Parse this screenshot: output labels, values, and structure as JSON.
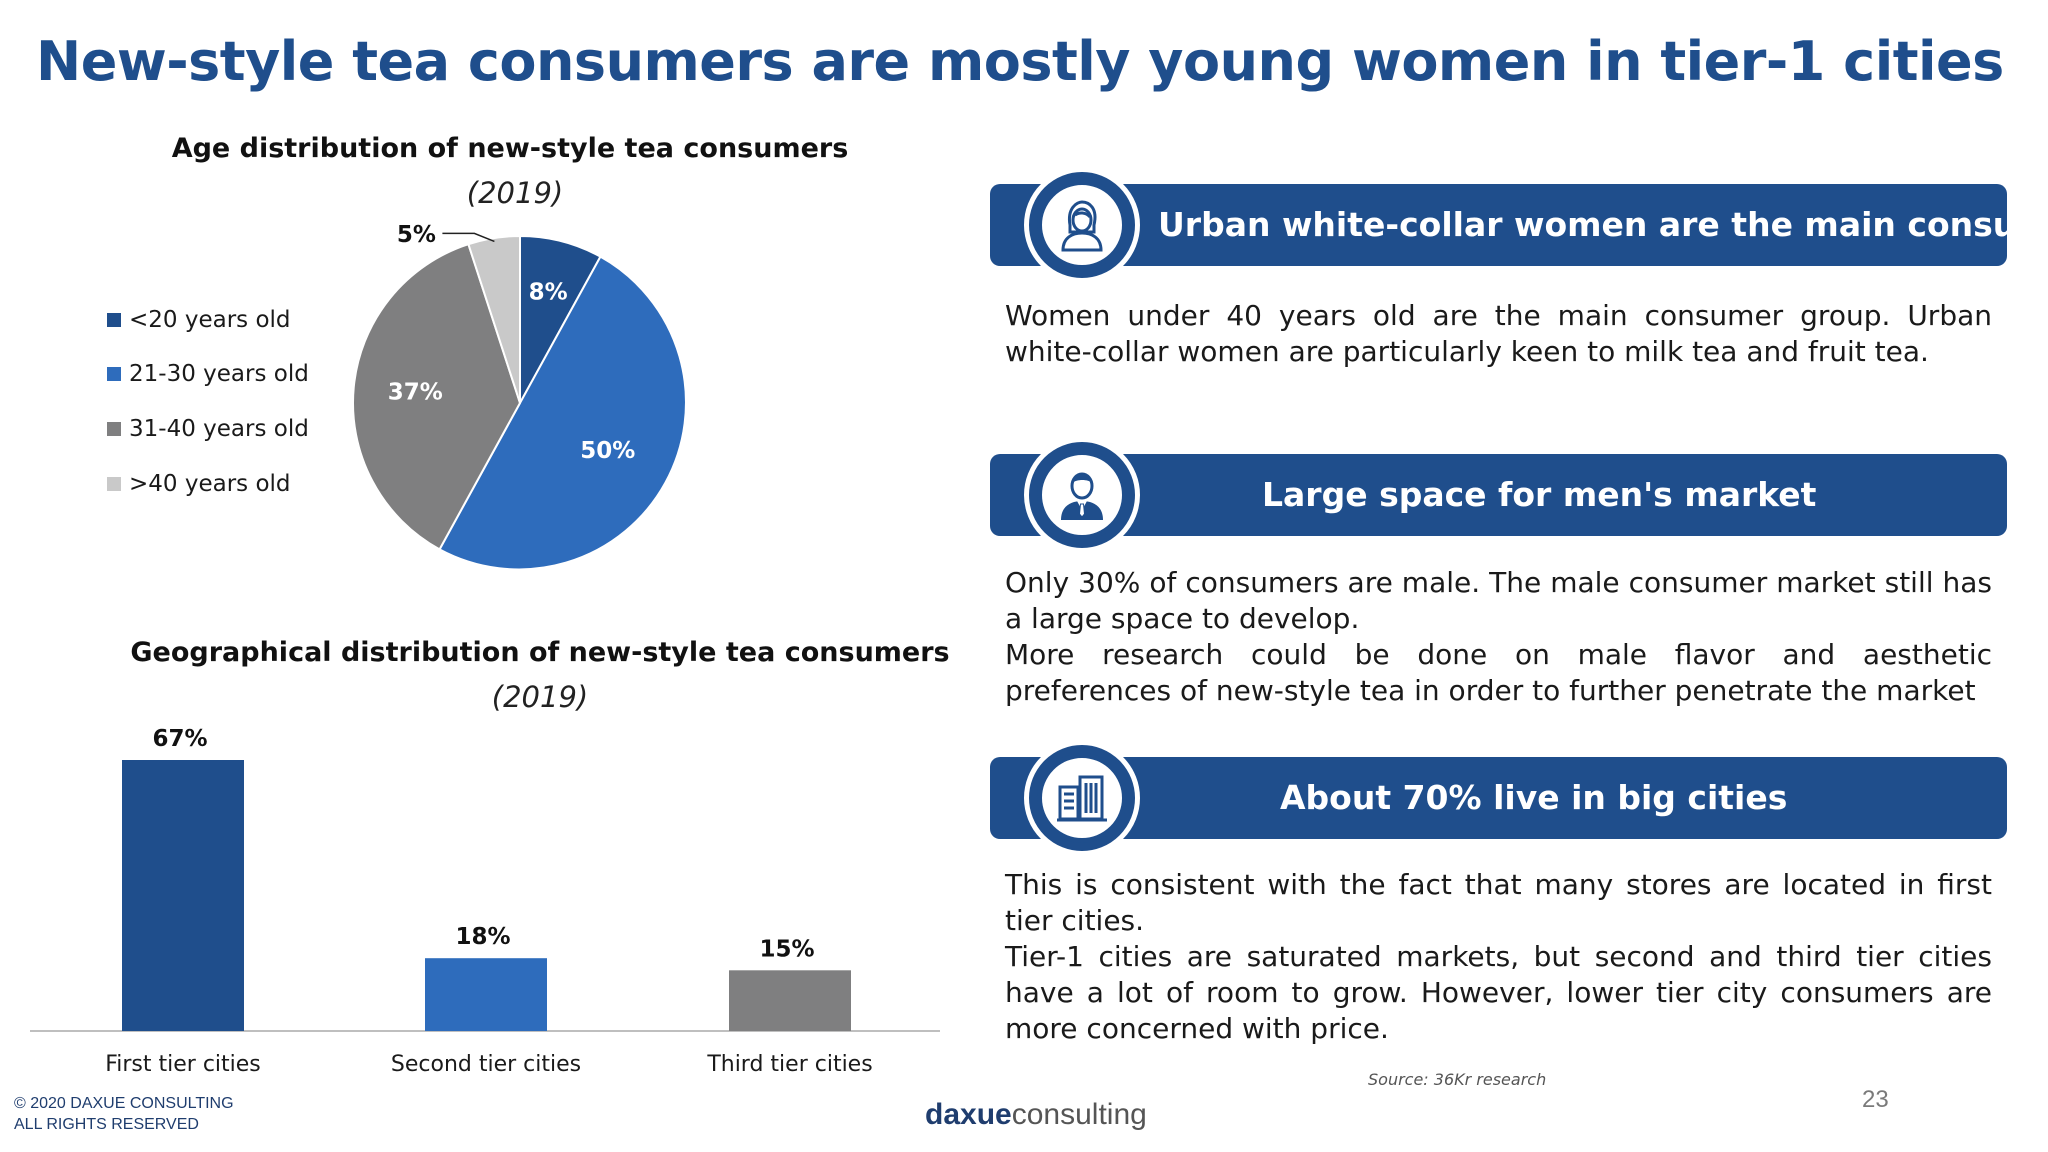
{
  "title": "New-style tea consumers are mostly young women in tier-1 cities",
  "colors": {
    "title": "#1f4e8c",
    "dark_blue": "#1f4e8c",
    "mid_blue": "#2e6cbc",
    "dark_gray": "#7f7f80",
    "light_gray": "#c9c9c9",
    "banner": "#1f4e8c"
  },
  "chart_data": [
    {
      "type": "pie",
      "title": "Age distribution of new-style tea consumers",
      "subtitle": "(2019)",
      "legend_position": "left",
      "categories": [
        "<20 years old",
        "21-30 years old",
        "31-40 years old",
        ">40 years old"
      ],
      "values": [
        8,
        50,
        37,
        5
      ],
      "labels": [
        "8%",
        "50%",
        "37%",
        "5%"
      ],
      "colors": [
        "#1f4e8c",
        "#2e6cbc",
        "#7f7f80",
        "#c9c9c9"
      ]
    },
    {
      "type": "bar",
      "title": "Geographical distribution of new-style tea consumers",
      "subtitle": "(2019)",
      "categories": [
        "First tier cities",
        "Second tier cities",
        "Third tier cities"
      ],
      "values": [
        67,
        18,
        15
      ],
      "labels": [
        "67%",
        "18%",
        "15%"
      ],
      "colors": [
        "#1f4e8c",
        "#2e6cbc",
        "#7f7f80"
      ],
      "ylim": [
        0,
        67
      ],
      "grid": false
    }
  ],
  "sections": [
    {
      "icon": "woman-icon",
      "heading": "Urban white-collar women are the main consumers",
      "paragraphs": [
        "Women under 40 years old are the main consumer group. Urban white-collar women are particularly keen to milk tea and fruit tea."
      ]
    },
    {
      "icon": "man-icon",
      "heading": "Large space for men's market",
      "paragraphs": [
        "Only 30% of consumers are male. The male consumer market still has a large space to develop.",
        "More research could be done on male flavor and aesthetic preferences of new-style tea in order to further penetrate the market"
      ]
    },
    {
      "icon": "city-buildings-icon",
      "heading": "About 70% live in big cities",
      "paragraphs": [
        "This is consistent with the fact that many stores are located in first tier cities.",
        "Tier-1 cities are saturated markets, but second and third tier cities have a lot of room to grow.  However, lower tier city consumers are more concerned with price."
      ]
    }
  ],
  "source": "Source: 36Kr  research",
  "footer": {
    "copyright_line1": "© 2020 DAXUE CONSULTING",
    "copyright_line2": "ALL RIGHTS RESERVED",
    "logo_part1": "daxue",
    "logo_part2": "consulting",
    "page_number": "23"
  }
}
